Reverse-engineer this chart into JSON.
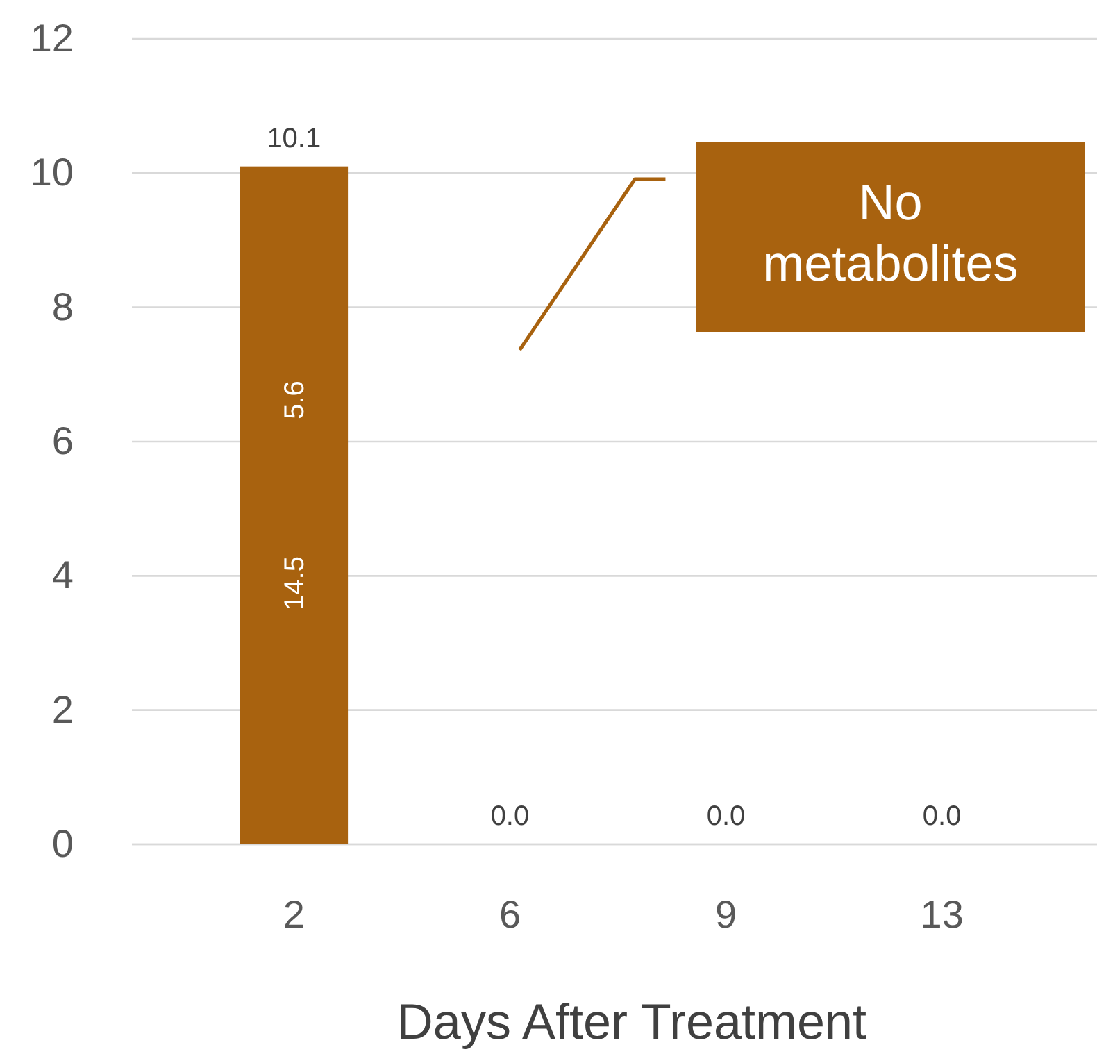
{
  "chart_data": {
    "type": "bar",
    "xlabel": "Days After Treatment",
    "categories": [
      "2",
      "6",
      "9",
      "13"
    ],
    "values": [
      10.1,
      0,
      0,
      0
    ],
    "value_labels": [
      "10.1",
      "0.0",
      "0.0",
      "0.0"
    ],
    "color": "#a8620f",
    "ylim": [
      0,
      12
    ],
    "yticks": [
      0,
      2,
      4,
      6,
      8,
      10,
      12
    ],
    "grid": "y",
    "annotations": [
      "14.5",
      "5.6",
      "No metabolites"
    ]
  }
}
